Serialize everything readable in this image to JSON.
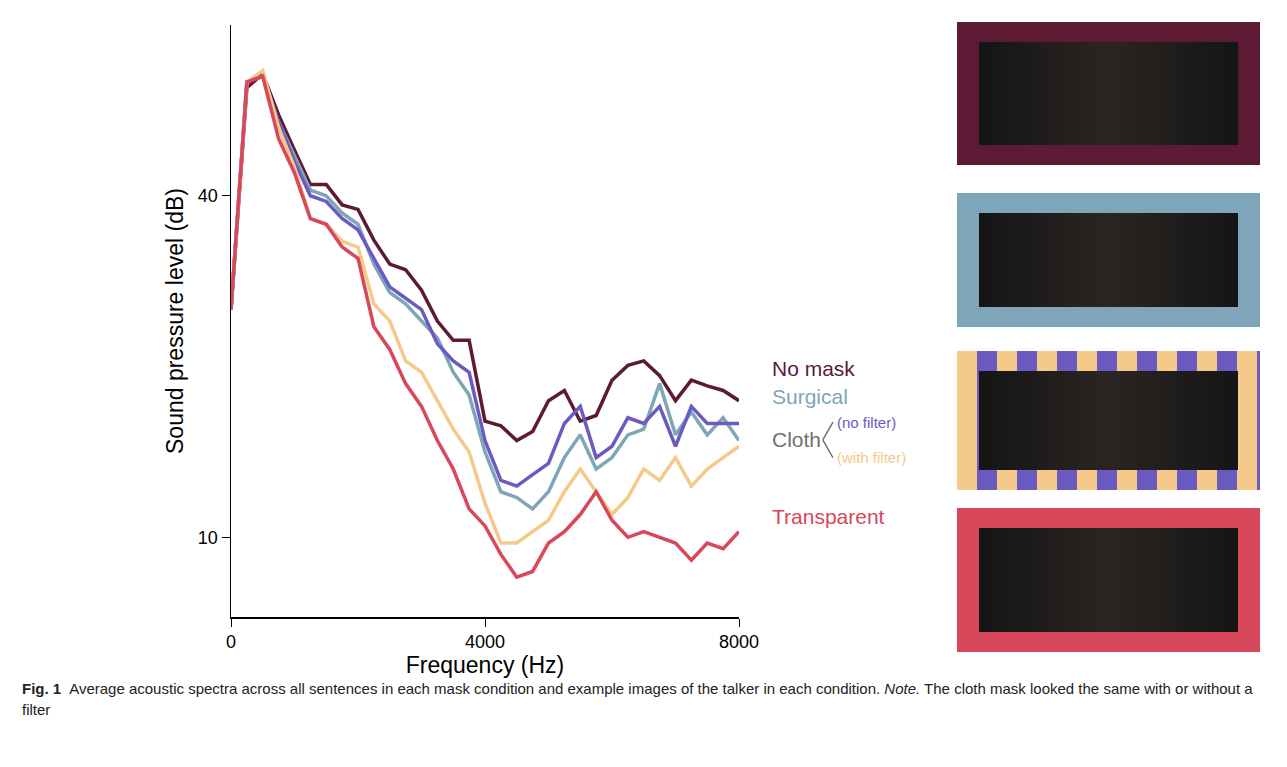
{
  "chart_data": {
    "type": "line",
    "xlabel": "Frequency (Hz)",
    "ylabel": "Sound pressure level (dB)",
    "x": [
      0,
      250,
      500,
      750,
      1000,
      1250,
      1500,
      1750,
      2000,
      2250,
      2500,
      2750,
      3000,
      3250,
      3500,
      3750,
      4000,
      4250,
      4500,
      4750,
      5000,
      5250,
      5500,
      5750,
      6000,
      6250,
      6500,
      6750,
      7000,
      7250,
      7500,
      7750,
      8000
    ],
    "series": [
      {
        "name": "No mask",
        "color": "#5c1a35",
        "values": [
          30,
          49.5,
          50.7,
          47.1,
          44,
          41,
          41,
          39.2,
          38.8,
          36.1,
          34,
          33.5,
          31.7,
          29,
          27.3,
          27.3,
          20.2,
          19.8,
          18.5,
          19.3,
          22,
          22.9,
          20.2,
          20.7,
          23.8,
          25.1,
          25.5,
          24.2,
          22,
          23.8,
          23.3,
          22.9,
          22
        ]
      },
      {
        "name": "Surgical",
        "color": "#7fa5b8",
        "values": [
          30,
          50,
          50.5,
          46.5,
          43.5,
          40.5,
          40,
          38.5,
          37.5,
          34,
          31.5,
          30.5,
          29,
          27.5,
          24.5,
          22.5,
          17.5,
          14,
          13.5,
          12.5,
          14,
          17,
          19,
          16,
          17,
          19,
          19.5,
          23.5,
          19,
          21,
          19,
          20.5,
          18.5
        ]
      },
      {
        "name": "(no filter)",
        "color": "#6b5bc0",
        "values": [
          30,
          50,
          50.5,
          46.5,
          43,
          40,
          39.5,
          38,
          37,
          34.5,
          32,
          31,
          30,
          27,
          25.5,
          24.5,
          18.5,
          15,
          14.5,
          15.5,
          16.5,
          20,
          21.5,
          17,
          18,
          20.5,
          20,
          21.5,
          18,
          21.5,
          20,
          20,
          20
        ]
      },
      {
        "name": "(with filter)",
        "color": "#f5c98a",
        "values": [
          30,
          50,
          51,
          46,
          42.5,
          38,
          37.5,
          36,
          35.5,
          30.5,
          29,
          25.5,
          24.5,
          22,
          19.5,
          17.5,
          13,
          9.5,
          9.5,
          10.5,
          11.5,
          14,
          16,
          14,
          12,
          13.5,
          16,
          15,
          17,
          14.5,
          16,
          17,
          18
        ]
      },
      {
        "name": "Transparent",
        "color": "#d9475a",
        "values": [
          30,
          50,
          50.5,
          45,
          42,
          38,
          37.5,
          35.5,
          34.5,
          28.5,
          26.5,
          23.5,
          21.5,
          18.5,
          16,
          12.5,
          11,
          8.5,
          6.5,
          7,
          9.5,
          10.5,
          12,
          14,
          11.5,
          10,
          10.5,
          10,
          9.5,
          8,
          9.5,
          9,
          10.5
        ]
      }
    ],
    "annotations": [
      "Cloth"
    ],
    "xlim": [
      0,
      8000
    ],
    "ylim": [
      3,
      55
    ],
    "xticks": [
      0,
      4000,
      8000
    ],
    "yticks": [
      10,
      40
    ],
    "grid": false
  },
  "caption": {
    "label": "Fig. 1",
    "text": "Average acoustic spectra across all sentences in each mask condition and example images of the talker in each condition.",
    "note_label": "Note.",
    "note": "The cloth mask looked the same with or without a filter"
  }
}
